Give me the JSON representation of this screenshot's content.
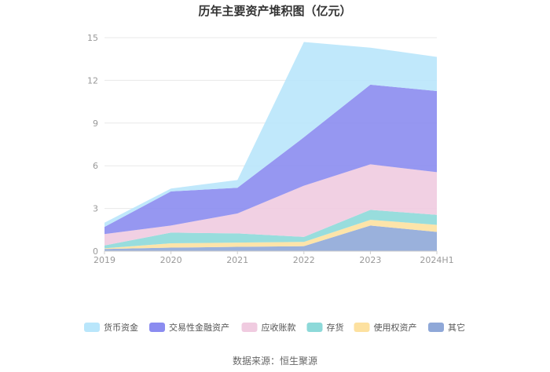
{
  "chart_data": {
    "type": "area",
    "stacked": true,
    "title": "历年主要资产堆积图（亿元）",
    "xlabel": "",
    "ylabel": "",
    "categories": [
      "2019",
      "2020",
      "2021",
      "2022",
      "2023",
      "2024H1"
    ],
    "ylim": [
      0,
      15
    ],
    "yticks": [
      0,
      3,
      6,
      9,
      12,
      15
    ],
    "grid": true,
    "legend_position": "bottom",
    "series": [
      {
        "name": "其它",
        "color": "#8fa8d8",
        "values": [
          0.15,
          0.25,
          0.3,
          0.35,
          1.8,
          1.35
        ]
      },
      {
        "name": "使用权资产",
        "color": "#fde1a0",
        "values": [
          0.05,
          0.3,
          0.3,
          0.3,
          0.4,
          0.5
        ]
      },
      {
        "name": "存货",
        "color": "#8dd9d9",
        "values": [
          0.2,
          0.75,
          0.65,
          0.35,
          0.7,
          0.7
        ]
      },
      {
        "name": "应收账款",
        "color": "#f0cbe0",
        "values": [
          0.8,
          0.5,
          1.4,
          3.6,
          3.2,
          3.0
        ]
      },
      {
        "name": "交易性金融资产",
        "color": "#8b8cf0",
        "values": [
          0.5,
          2.4,
          1.8,
          3.4,
          5.6,
          5.7
        ]
      },
      {
        "name": "货币资金",
        "color": "#b9e6fb",
        "values": [
          0.3,
          0.2,
          0.55,
          6.7,
          2.6,
          2.4
        ]
      }
    ],
    "legend_order": [
      "货币资金",
      "交易性金融资产",
      "应收账款",
      "存货",
      "使用权资产",
      "其它"
    ]
  },
  "source_text": "数据来源：恒生聚源"
}
